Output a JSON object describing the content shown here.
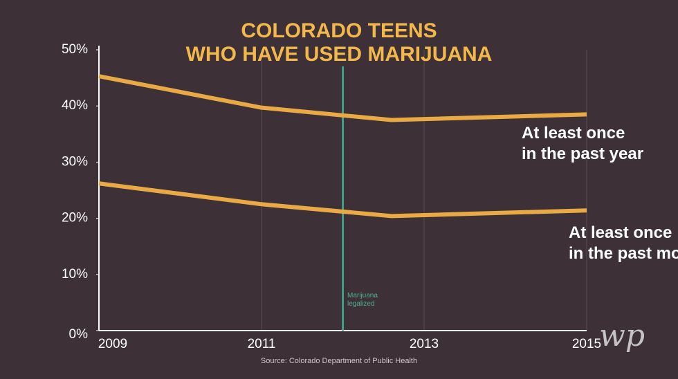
{
  "chart_data": {
    "type": "line",
    "title": "COLORADO TEENS\nWHO HAVE USED MARIJUANA",
    "x": [
      2009,
      2011,
      2012.6,
      2015
    ],
    "series": [
      {
        "name": "At least once\nin the past year",
        "color": "#e9aa45",
        "values": [
          45.3,
          39.7,
          37.5,
          38.5
        ]
      },
      {
        "name": "At least once\nin the past month",
        "color": "#e9aa45",
        "values": [
          26.2,
          22.5,
          20.4,
          21.4
        ]
      }
    ],
    "xlim": [
      2009,
      2015
    ],
    "xticks": [
      2009,
      2011,
      2013,
      2015
    ],
    "ylim": [
      0,
      50
    ],
    "yticks": [
      {
        "value": 0,
        "label": "0%"
      },
      {
        "value": 10,
        "label": "10%"
      },
      {
        "value": 20,
        "label": "20%"
      },
      {
        "value": 30,
        "label": "30%"
      },
      {
        "value": 40,
        "label": "40%"
      },
      {
        "value": 50,
        "label": "50%"
      }
    ],
    "grid": true,
    "marker_line": {
      "x": 2012,
      "label": "Marijuana\nlegalized",
      "color": "#3f9e86"
    },
    "source": "Source: Colorado Department of Public Health",
    "watermark": "wp"
  }
}
